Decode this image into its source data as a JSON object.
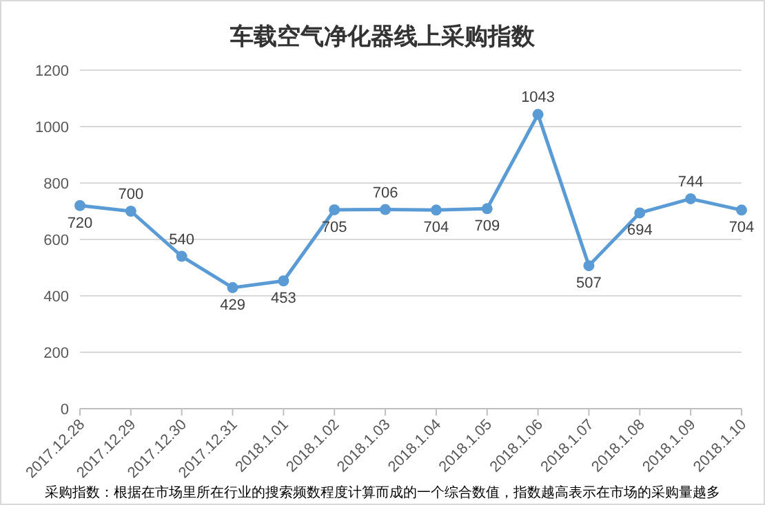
{
  "chart_data": {
    "type": "line",
    "title": "车载空气净化器线上采购指数",
    "categories": [
      "2017.12.28",
      "2017.12.29",
      "2017.12.30",
      "2017.12.31",
      "2018.1.01",
      "2018.1.02",
      "2018.1.03",
      "2018.1.04",
      "2018.1.05",
      "2018.1.06",
      "2018.1.07",
      "2018.1.08",
      "2018.1.09",
      "2018.1.10"
    ],
    "series": [
      {
        "color": "#5b9bd5",
        "values": [
          720,
          700,
          540,
          429,
          453,
          705,
          706,
          704,
          709,
          1043,
          507,
          694,
          744,
          704
        ]
      }
    ],
    "ylim": [
      0,
      1200
    ],
    "yticks": [
      0,
      200,
      400,
      600,
      800,
      1000,
      1200
    ],
    "grid": "y",
    "marker": "circle",
    "data_labels": true,
    "annotations": [
      "采购指数：根据在市场里所在行业的搜索频数程度计算而成的一个综合数值，指数越高表示在市场的采购量越多"
    ]
  }
}
